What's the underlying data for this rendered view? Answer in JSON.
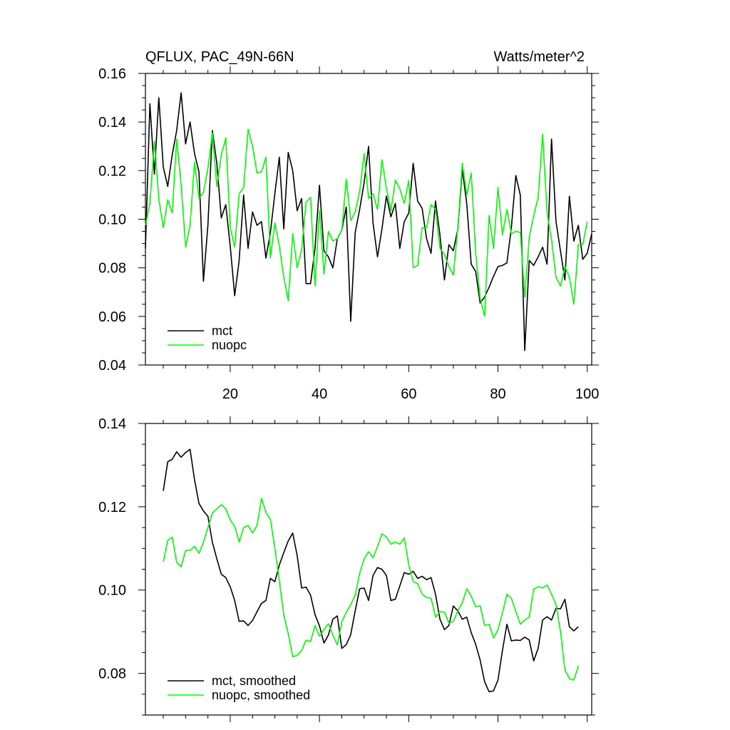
{
  "chart_data": [
    {
      "type": "line",
      "title_left": "QFLUX, PAC_49N-66N",
      "title_right": "Watts/meter^2",
      "xlabel": "",
      "ylabel": "",
      "xlim": [
        1,
        101
      ],
      "ylim": [
        0.04,
        0.16
      ],
      "xticks": [
        20,
        40,
        60,
        80,
        100
      ],
      "yticks": [
        0.04,
        0.06,
        0.08,
        0.1,
        0.12,
        0.14,
        0.16
      ],
      "ytick_labels": [
        "0.04",
        "0.06",
        "0.08",
        "0.10",
        "0.12",
        "0.14",
        "0.16"
      ],
      "xtick_labels": [
        "20",
        "40",
        "60",
        "80",
        "100"
      ],
      "legend_position": "bottom-left",
      "series": [
        {
          "name": "mct",
          "color": "#000000",
          "values": [
            0.088,
            0.1475,
            0.1185,
            0.15,
            0.1215,
            0.1135,
            0.1265,
            0.1365,
            0.152,
            0.131,
            0.14,
            0.127,
            0.1195,
            0.0745,
            0.0975,
            0.1365,
            0.123,
            0.1005,
            0.106,
            0.089,
            0.0685,
            0.083,
            0.11,
            0.088,
            0.103,
            0.0975,
            0.099,
            0.084,
            0.0945,
            0.1105,
            0.1255,
            0.096,
            0.1275,
            0.12,
            0.1035,
            0.1085,
            0.0735,
            0.0735,
            0.088,
            0.114,
            0.087,
            0.0845,
            0.08,
            0.092,
            0.0955,
            0.105,
            0.058,
            0.0945,
            0.104,
            0.115,
            0.13,
            0.0985,
            0.0845,
            0.096,
            0.1095,
            0.101,
            0.1065,
            0.088,
            0.099,
            0.1025,
            0.123,
            0.1075,
            0.1045,
            0.092,
            0.086,
            0.1075,
            0.0935,
            0.075,
            0.0895,
            0.087,
            0.096,
            0.1205,
            0.1065,
            0.0815,
            0.0785,
            0.0655,
            0.068,
            0.072,
            0.0765,
            0.0805,
            0.081,
            0.082,
            0.0965,
            0.118,
            0.11,
            0.046,
            0.083,
            0.081,
            0.0845,
            0.0885,
            0.0815,
            0.133,
            0.099,
            0.087,
            0.075,
            0.1095,
            0.091,
            0.0975,
            0.0835,
            0.086,
            0.094
          ]
        },
        {
          "name": "nuopc",
          "color": "#00ff00",
          "values": [
            0.0975,
            0.1065,
            0.132,
            0.108,
            0.0965,
            0.108,
            0.1025,
            0.133,
            0.114,
            0.0885,
            0.0975,
            0.1235,
            0.1085,
            0.111,
            0.121,
            0.1355,
            0.1135,
            0.1265,
            0.1335,
            0.0965,
            0.0885,
            0.1105,
            0.113,
            0.137,
            0.13,
            0.119,
            0.1195,
            0.1255,
            0.084,
            0.0985,
            0.089,
            0.076,
            0.0665,
            0.094,
            0.08,
            0.0875,
            0.107,
            0.109,
            0.0725,
            0.1035,
            0.0775,
            0.095,
            0.091,
            0.092,
            0.0955,
            0.1165,
            0.0995,
            0.103,
            0.1115,
            0.127,
            0.1085,
            0.1105,
            0.104,
            0.1245,
            0.1125,
            0.1035,
            0.116,
            0.1125,
            0.1065,
            0.116,
            0.08,
            0.081,
            0.0965,
            0.0965,
            0.106,
            0.104,
            0.088,
            0.0855,
            0.0805,
            0.077,
            0.0965,
            0.123,
            0.11,
            0.119,
            0.086,
            0.0675,
            0.06,
            0.1015,
            0.088,
            0.113,
            0.0935,
            0.104,
            0.094,
            0.095,
            0.0945,
            0.068,
            0.0925,
            0.1015,
            0.109,
            0.135,
            0.1025,
            0.0915,
            0.076,
            0.0725,
            0.0805,
            0.076,
            0.065,
            0.0895,
            0.0895,
            0.099
          ]
        }
      ]
    },
    {
      "type": "line",
      "title_left": "",
      "title_right": "",
      "xlabel": "",
      "ylabel": "",
      "xlim": [
        1,
        101
      ],
      "ylim": [
        0.07,
        0.14
      ],
      "xticks": [
        20,
        40,
        60,
        80,
        100
      ],
      "yticks": [
        0.08,
        0.1,
        0.12,
        0.14
      ],
      "ytick_labels": [
        "0.08",
        "0.10",
        "0.12",
        "0.14"
      ],
      "xtick_labels": [],
      "legend_position": "bottom-left",
      "series": [
        {
          "name": "mct, smoothed",
          "color": "#000000",
          "x_start": 5,
          "values": [
            0.1238,
            0.1308,
            0.1314,
            0.1332,
            0.1319,
            0.133,
            0.1338,
            0.1265,
            0.1208,
            0.119,
            0.1177,
            0.1115,
            0.1075,
            0.1038,
            0.103,
            0.1008,
            0.0975,
            0.0925,
            0.0926,
            0.0915,
            0.0927,
            0.0948,
            0.0968,
            0.0975,
            0.1028,
            0.102,
            0.106,
            0.109,
            0.1118,
            0.1137,
            0.1083,
            0.1005,
            0.1007,
            0.0988,
            0.0941,
            0.0914,
            0.0873,
            0.0892,
            0.093,
            0.0938,
            0.086,
            0.0869,
            0.0893,
            0.095,
            0.1003,
            0.1005,
            0.0975,
            0.1035,
            0.1054,
            0.105,
            0.1035,
            0.0975,
            0.0978,
            0.101,
            0.1042,
            0.1038,
            0.1045,
            0.1028,
            0.1033,
            0.1025,
            0.103,
            0.099,
            0.093,
            0.0905,
            0.0915,
            0.0962,
            0.095,
            0.093,
            0.0935,
            0.0898,
            0.087,
            0.0832,
            0.078,
            0.0756,
            0.0758,
            0.0784,
            0.0855,
            0.0918,
            0.0878,
            0.088,
            0.0879,
            0.0887,
            0.088,
            0.083,
            0.086,
            0.0928,
            0.0936,
            0.0928,
            0.0956,
            0.0955,
            0.0978,
            0.0912,
            0.0902,
            0.0912
          ]
        },
        {
          "name": "nuopc, smoothed",
          "color": "#00ff00",
          "x_start": 5,
          "values": [
            0.1068,
            0.1119,
            0.1127,
            0.1066,
            0.1056,
            0.1095,
            0.1095,
            0.1105,
            0.1088,
            0.1115,
            0.115,
            0.1185,
            0.1195,
            0.1205,
            0.1195,
            0.1168,
            0.1153,
            0.1115,
            0.115,
            0.1155,
            0.1137,
            0.1155,
            0.122,
            0.1186,
            0.117,
            0.11,
            0.1022,
            0.094,
            0.0895,
            0.084,
            0.0843,
            0.0855,
            0.088,
            0.0876,
            0.0915,
            0.0889,
            0.0905,
            0.0919,
            0.0892,
            0.0868,
            0.0924,
            0.0947,
            0.0965,
            0.0988,
            0.104,
            0.1075,
            0.1092,
            0.1077,
            0.1105,
            0.1135,
            0.1127,
            0.111,
            0.1115,
            0.111,
            0.1125,
            0.106,
            0.102,
            0.1015,
            0.099,
            0.0982,
            0.098,
            0.0935,
            0.0948,
            0.0947,
            0.092,
            0.0925,
            0.095,
            0.097,
            0.1003,
            0.0985,
            0.096,
            0.0962,
            0.0915,
            0.0918,
            0.0885,
            0.0905,
            0.0945,
            0.099,
            0.098,
            0.0948,
            0.0918,
            0.0928,
            0.0935,
            0.1002,
            0.1008,
            0.1005,
            0.1012,
            0.099,
            0.0965,
            0.09,
            0.0808,
            0.0787,
            0.0784,
            0.0818
          ]
        }
      ]
    }
  ]
}
